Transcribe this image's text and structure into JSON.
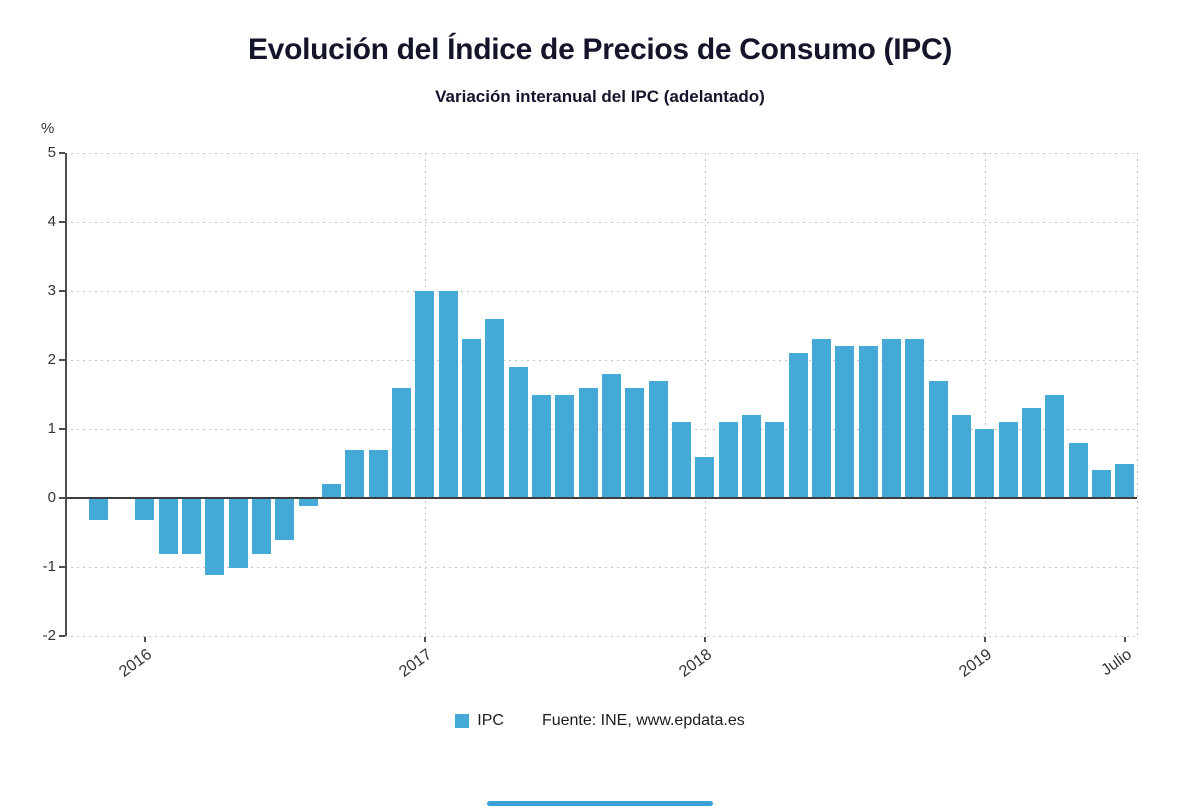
{
  "chart_data": {
    "type": "bar",
    "title": "Evolución del Índice de Precios de Consumo (IPC)",
    "subtitle": "Variación interanual del IPC (adelantado)",
    "y_unit": "%",
    "ylim": [
      -2,
      5
    ],
    "yticks": [
      5,
      4,
      3,
      2,
      1,
      0,
      -1,
      -2
    ],
    "grid": "dotted",
    "legend": {
      "label": "IPC"
    },
    "source": "Fuente: INE, www.epdata.es",
    "colors": {
      "bar": "#45a9d6",
      "title": "#14142b",
      "axis_text": "#333333",
      "grid": "#c3c3c3",
      "zero_line": "#3d3d3d",
      "accent_bar": "#3aa3d6"
    },
    "xticks": [
      {
        "label": "2016",
        "index": 2,
        "gridline": false
      },
      {
        "label": "2017",
        "index": 14,
        "gridline": true
      },
      {
        "label": "2018",
        "index": 26,
        "gridline": true
      },
      {
        "label": "2019",
        "index": 38,
        "gridline": true
      },
      {
        "label": "Julio",
        "index": 44,
        "gridline": false
      }
    ],
    "series": [
      {
        "name": "IPC",
        "x": [
          "2015-11",
          "2015-12",
          "2016-01",
          "2016-02",
          "2016-03",
          "2016-04",
          "2016-05",
          "2016-06",
          "2016-07",
          "2016-08",
          "2016-09",
          "2016-10",
          "2016-11",
          "2016-12",
          "2017-01",
          "2017-02",
          "2017-03",
          "2017-04",
          "2017-05",
          "2017-06",
          "2017-07",
          "2017-08",
          "2017-09",
          "2017-10",
          "2017-11",
          "2017-12",
          "2018-01",
          "2018-02",
          "2018-03",
          "2018-04",
          "2018-05",
          "2018-06",
          "2018-07",
          "2018-08",
          "2018-09",
          "2018-10",
          "2018-11",
          "2018-12",
          "2019-01",
          "2019-02",
          "2019-03",
          "2019-04",
          "2019-05",
          "2019-06",
          "2019-07"
        ],
        "values": [
          -0.3,
          0.0,
          -0.3,
          -0.8,
          -0.8,
          -1.1,
          -1.0,
          -0.8,
          -0.6,
          -0.1,
          0.2,
          0.7,
          0.7,
          1.6,
          3.0,
          3.0,
          2.3,
          2.6,
          1.9,
          1.5,
          1.5,
          1.6,
          1.8,
          1.6,
          1.7,
          1.1,
          0.6,
          1.1,
          1.2,
          1.1,
          2.1,
          2.3,
          2.2,
          2.2,
          2.3,
          2.3,
          1.7,
          1.2,
          1.0,
          1.1,
          1.3,
          1.5,
          0.8,
          0.4,
          0.5
        ]
      }
    ]
  }
}
